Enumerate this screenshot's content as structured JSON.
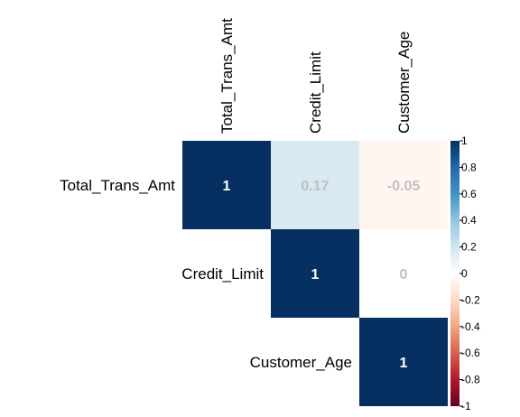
{
  "chart_data": {
    "type": "heatmap",
    "subtype": "correlation-matrix-upper",
    "variables": [
      "Total_Trans_Amt",
      "Credit_Limit",
      "Customer_Age"
    ],
    "matrix": [
      [
        1,
        0.17,
        -0.05
      ],
      [
        null,
        1,
        0
      ],
      [
        null,
        null,
        1
      ]
    ],
    "cell_labels": [
      [
        "1",
        "0.17",
        "-0.05"
      ],
      [
        null,
        "1",
        "0"
      ],
      [
        null,
        null,
        "1"
      ]
    ],
    "colorbar": {
      "range": [
        -1,
        1
      ],
      "ticks": [
        1,
        0.8,
        0.6,
        0.4,
        0.2,
        0,
        -0.2,
        -0.4,
        -0.6,
        -0.8,
        -1
      ],
      "tick_labels": [
        "1",
        "0.8",
        "0.6",
        "0.4",
        "0.2",
        "0",
        "-0.2",
        "-0.4",
        "-0.6",
        "-0.8",
        "-1"
      ],
      "colors": {
        "negative": "#67001f",
        "neutral": "#ffffff",
        "positive": "#053061"
      }
    },
    "label_colors": {
      "on_dark": "#ffffff",
      "on_light": "#c0c0c0"
    },
    "title": "",
    "xlabel": "",
    "ylabel": ""
  }
}
